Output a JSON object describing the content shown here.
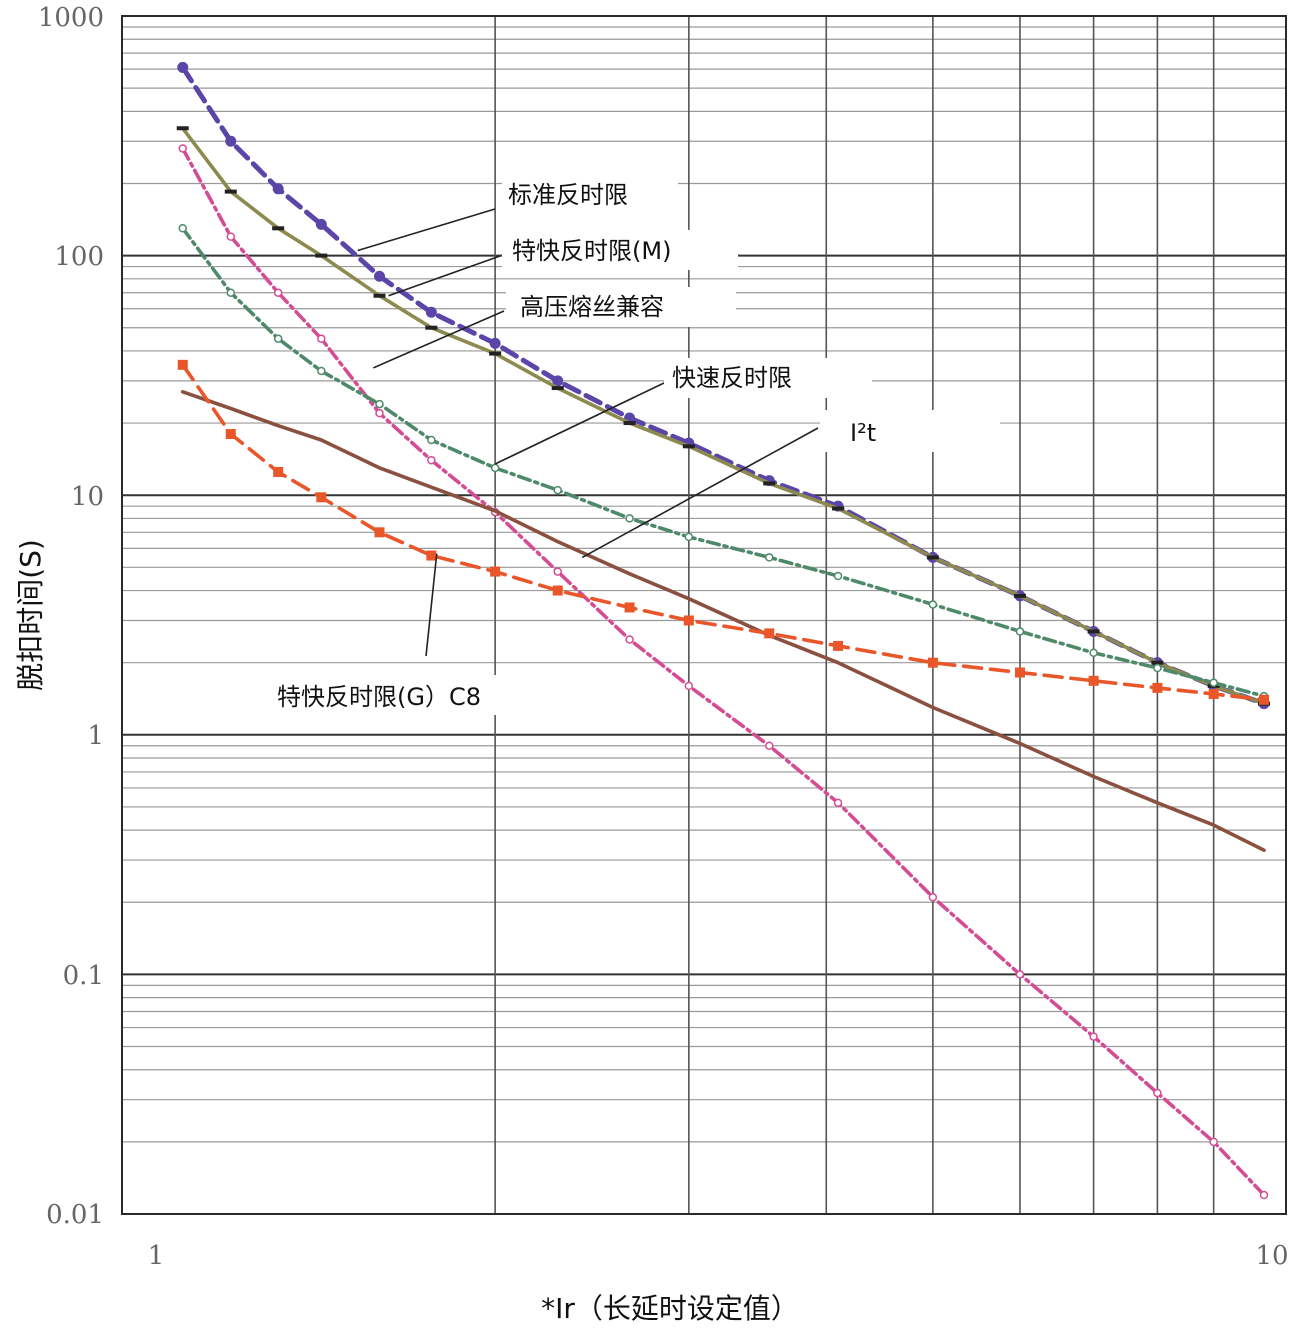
{
  "chart_data": {
    "type": "line",
    "title": "",
    "xlabel": "*Ir（长延时设定值）",
    "ylabel": "脱扣时间(S)",
    "xscale": "log",
    "yscale": "log",
    "xlim": [
      1,
      10
    ],
    "ylim": [
      0.01,
      1000
    ],
    "grid": true,
    "x_tick_labels": [
      "1",
      "10"
    ],
    "y_tick_labels": [
      "1000",
      "100",
      "10",
      "1",
      "0.1",
      "0.01"
    ],
    "series": [
      {
        "name": "标准反时限",
        "color": "#5B45A8",
        "x": [
          1.04,
          1.15,
          1.27,
          1.39,
          1.57,
          1.75,
          2.0,
          2.28,
          2.65,
          3.0,
          3.55,
          4.1,
          5.0,
          6.0,
          7.0,
          8.0,
          9.0,
          10.0
        ],
        "y": [
          610,
          300,
          190,
          135,
          82,
          58,
          43,
          30,
          21,
          16.5,
          11.5,
          9.0,
          5.5,
          3.8,
          2.7,
          2.0,
          1.6,
          1.35
        ]
      },
      {
        "name": "特快反时限(M)",
        "color": "#8C8A4E",
        "x": [
          1.04,
          1.15,
          1.27,
          1.39,
          1.57,
          1.75,
          2.0,
          2.28,
          2.65,
          3.0,
          3.55,
          4.1,
          5.0,
          6.0,
          7.0,
          8.0,
          9.0,
          10.0
        ],
        "y": [
          340,
          185,
          130,
          100,
          68,
          50,
          39,
          28,
          20,
          16,
          11.2,
          8.8,
          5.5,
          3.8,
          2.7,
          2.0,
          1.6,
          1.35
        ]
      },
      {
        "name": "高压熔丝兼容",
        "color": "#D44C94",
        "x": [
          1.04,
          1.15,
          1.27,
          1.39,
          1.57,
          1.75,
          2.0,
          2.28,
          2.65,
          3.0,
          3.55,
          4.1,
          5.0,
          6.0,
          7.0,
          8.0,
          9.0,
          10.0
        ],
        "y": [
          280,
          120,
          70,
          45,
          22,
          14,
          8.5,
          4.8,
          2.5,
          1.6,
          0.9,
          0.52,
          0.21,
          0.1,
          0.055,
          0.032,
          0.02,
          0.012
        ]
      },
      {
        "name": "快速反时限",
        "color": "#4E8A6A",
        "x": [
          1.04,
          1.15,
          1.27,
          1.39,
          1.57,
          1.75,
          2.0,
          2.28,
          2.65,
          3.0,
          3.55,
          4.1,
          5.0,
          6.0,
          7.0,
          8.0,
          9.0,
          10.0
        ],
        "y": [
          130,
          70,
          45,
          33,
          24,
          17,
          13,
          10.5,
          8.0,
          6.7,
          5.5,
          4.6,
          3.5,
          2.7,
          2.2,
          1.9,
          1.65,
          1.45
        ]
      },
      {
        "name": "I²t",
        "color": "#8A5040",
        "x": [
          1.04,
          1.15,
          1.27,
          1.39,
          1.57,
          1.75,
          2.0,
          2.28,
          2.65,
          3.0,
          3.55,
          4.1,
          5.0,
          6.0,
          7.0,
          8.0,
          9.0,
          10.0
        ],
        "y": [
          27,
          23,
          19.5,
          17,
          13,
          10.8,
          8.6,
          6.4,
          4.7,
          3.7,
          2.6,
          2.0,
          1.3,
          0.92,
          0.67,
          0.52,
          0.42,
          0.33
        ]
      },
      {
        "name": "特快反时限(G）C8",
        "color": "#E8562A",
        "x": [
          1.04,
          1.15,
          1.27,
          1.39,
          1.57,
          1.75,
          2.0,
          2.28,
          2.65,
          3.0,
          3.55,
          4.1,
          5.0,
          6.0,
          7.0,
          8.0,
          9.0,
          10.0
        ],
        "y": [
          35,
          18,
          12.5,
          9.8,
          7.0,
          5.6,
          4.8,
          4.0,
          3.4,
          3.0,
          2.65,
          2.35,
          2.0,
          1.82,
          1.68,
          1.57,
          1.48,
          1.4
        ]
      }
    ],
    "annotations": [
      "标准反时限",
      "特快反时限(M)",
      "高压熔丝兼容",
      "快速反时限",
      "I²t",
      "特快反时限(G）C8"
    ]
  }
}
